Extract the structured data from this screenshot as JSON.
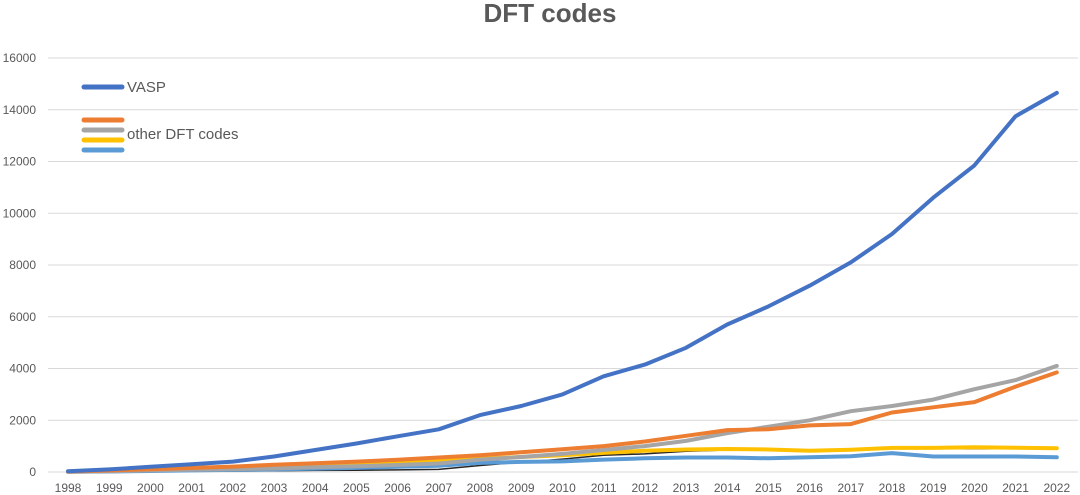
{
  "chart_data": {
    "type": "line",
    "title": "DFT codes",
    "xlabel": "",
    "ylabel": "",
    "ylim": [
      0,
      16000
    ],
    "yticks": [
      0,
      2000,
      4000,
      6000,
      8000,
      10000,
      12000,
      14000,
      16000
    ],
    "grid": true,
    "legend_position": "top-left",
    "categories": [
      "1998",
      "1999",
      "2000",
      "2001",
      "2002",
      "2003",
      "2004",
      "2005",
      "2006",
      "2007",
      "2008",
      "2009",
      "2010",
      "2011",
      "2012",
      "2013",
      "2014",
      "2015",
      "2016",
      "2017",
      "2018",
      "2019",
      "2020",
      "2021",
      "2022"
    ],
    "legend": [
      {
        "label": "VASP",
        "colors": [
          "#4472C4"
        ]
      },
      {
        "label": "other DFT codes",
        "colors": [
          "#ED7D31",
          "#A5A5A5",
          "#FFC000",
          "#5B9BD5"
        ]
      }
    ],
    "series": [
      {
        "name": "VASP",
        "color": "#4472C4",
        "values": [
          30,
          100,
          200,
          300,
          400,
          600,
          850,
          1100,
          1380,
          1650,
          2200,
          2550,
          3000,
          3700,
          4150,
          4800,
          5700,
          6400,
          7200,
          8100,
          9200,
          10600,
          11850,
          13750,
          14650
        ]
      },
      {
        "color": "#ED7D31",
        "values": [
          20,
          60,
          110,
          160,
          210,
          280,
          340,
          400,
          470,
          560,
          650,
          760,
          880,
          1000,
          1180,
          1400,
          1620,
          1650,
          1800,
          1850,
          2300,
          2500,
          2700,
          3300,
          3850
        ]
      },
      {
        "color": "#A5A5A5",
        "values": [
          10,
          30,
          60,
          90,
          110,
          140,
          180,
          220,
          270,
          330,
          480,
          580,
          700,
          850,
          1000,
          1200,
          1500,
          1750,
          2000,
          2350,
          2550,
          2800,
          3200,
          3550,
          4100
        ]
      },
      {
        "color": "#FFC000",
        "values": [
          20,
          50,
          100,
          140,
          190,
          230,
          280,
          320,
          370,
          420,
          520,
          580,
          650,
          740,
          820,
          870,
          890,
          870,
          820,
          860,
          930,
          930,
          960,
          940,
          920
        ]
      },
      {
        "color": "#5B9BD5",
        "values": [
          10,
          20,
          40,
          60,
          80,
          100,
          130,
          160,
          200,
          240,
          350,
          390,
          410,
          480,
          530,
          560,
          560,
          530,
          570,
          610,
          730,
          600,
          600,
          600,
          570
        ]
      },
      {
        "color": "#262626",
        "thin": true,
        "values": [
          0,
          10,
          20,
          30,
          40,
          50,
          60,
          70,
          80,
          100,
          250,
          380,
          500,
          650,
          700,
          800,
          850,
          850,
          800,
          850,
          900,
          900,
          900,
          900,
          900
        ]
      }
    ]
  }
}
